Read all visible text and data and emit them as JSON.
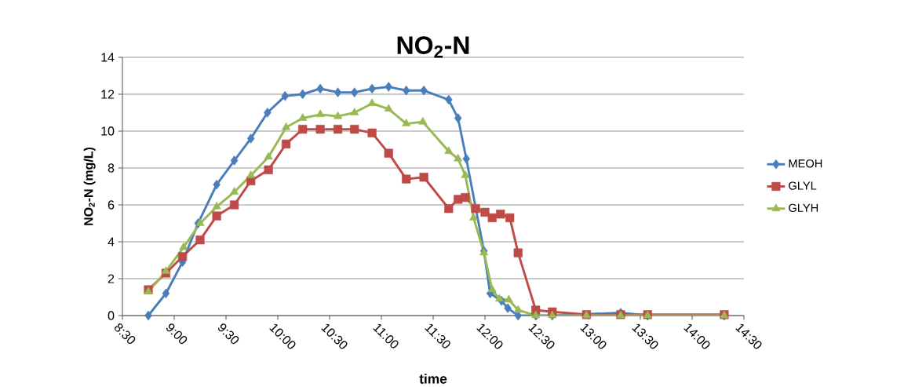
{
  "chart_data": {
    "type": "line",
    "title": "NO$_{2}$-N",
    "xlabel": "time",
    "ylabel": "NO$_{2}$-N (mg/L)",
    "xlim": [
      8.5,
      14.5
    ],
    "xticks": [
      {
        "value": 8.5,
        "label": "8:30"
      },
      {
        "value": 9,
        "label": "9:00"
      },
      {
        "value": 9.5,
        "label": "9:30"
      },
      {
        "value": 10,
        "label": "10:00"
      },
      {
        "value": 10.5,
        "label": "10:30"
      },
      {
        "value": 11,
        "label": "11:00"
      },
      {
        "value": 11.5,
        "label": "11:30"
      },
      {
        "value": 12,
        "label": "12:00"
      },
      {
        "value": 12.5,
        "label": "12:30"
      },
      {
        "value": 13,
        "label": "13:00"
      },
      {
        "value": 13.5,
        "label": "13:30"
      },
      {
        "value": 14,
        "label": "14:00"
      },
      {
        "value": 14.5,
        "label": "14:30"
      }
    ],
    "ylim": [
      0,
      14
    ],
    "yticks": [
      0,
      2,
      4,
      6,
      8,
      10,
      12,
      14
    ],
    "grid": "y",
    "legend": "right",
    "line_style": "solid",
    "series": [
      {
        "name": "MEOH",
        "color": "#4a7ebb",
        "marker": "diamond",
        "x": [
          8.75,
          8.92,
          9.08,
          9.23,
          9.41,
          9.58,
          9.74,
          9.9,
          10.07,
          10.24,
          10.41,
          10.58,
          10.74,
          10.91,
          11.07,
          11.24,
          11.41,
          11.65,
          11.74,
          11.82,
          11.99,
          12.05,
          12.16,
          12.22,
          12.32,
          12.49,
          12.65,
          12.98,
          13.31,
          13.57,
          14.31
        ],
        "values": [
          0,
          1.2,
          2.9,
          5.0,
          7.1,
          8.4,
          9.6,
          11.0,
          11.9,
          12.0,
          12.3,
          12.1,
          12.1,
          12.3,
          12.4,
          12.2,
          12.2,
          11.7,
          10.7,
          8.5,
          3.5,
          1.2,
          0.8,
          0.4,
          0,
          0,
          0,
          null,
          0.15,
          0,
          0
        ]
      },
      {
        "name": "GLYL",
        "color": "#be4b48",
        "marker": "square",
        "x": [
          8.75,
          8.92,
          9.08,
          9.25,
          9.41,
          9.58,
          9.74,
          9.91,
          10.08,
          10.24,
          10.41,
          10.58,
          10.74,
          10.91,
          11.07,
          11.24,
          11.41,
          11.65,
          11.74,
          11.81,
          11.91,
          12.0,
          12.07,
          12.15,
          12.24,
          12.32,
          12.49,
          12.65,
          12.98,
          13.31,
          13.57,
          14.31
        ],
        "values": [
          1.4,
          2.3,
          3.2,
          4.1,
          5.4,
          6.0,
          7.3,
          7.9,
          9.3,
          10.1,
          10.1,
          10.1,
          10.1,
          9.9,
          8.8,
          7.4,
          7.5,
          5.8,
          6.3,
          6.4,
          5.8,
          5.6,
          5.3,
          5.5,
          5.3,
          3.4,
          0.3,
          0.2,
          0.05,
          0.05,
          0.05,
          0.05
        ]
      },
      {
        "name": "GLYH",
        "color": "#98b954",
        "marker": "triangle",
        "x": [
          8.75,
          8.92,
          9.09,
          9.25,
          9.41,
          9.58,
          9.74,
          9.91,
          10.08,
          10.24,
          10.41,
          10.58,
          10.74,
          10.91,
          11.07,
          11.24,
          11.4,
          11.65,
          11.74,
          11.81,
          11.89,
          11.99,
          12.07,
          12.14,
          12.23,
          12.32,
          12.49,
          12.65,
          12.98,
          13.31,
          13.57,
          14.31
        ],
        "values": [
          1.3,
          2.4,
          3.7,
          5.0,
          5.9,
          6.7,
          7.6,
          8.6,
          10.2,
          10.7,
          10.9,
          10.8,
          11.0,
          11.5,
          11.2,
          10.4,
          10.5,
          8.9,
          8.5,
          7.6,
          5.3,
          3.4,
          1.4,
          0.9,
          0.85,
          0.3,
          0,
          0,
          0,
          0,
          0,
          0
        ]
      }
    ]
  }
}
